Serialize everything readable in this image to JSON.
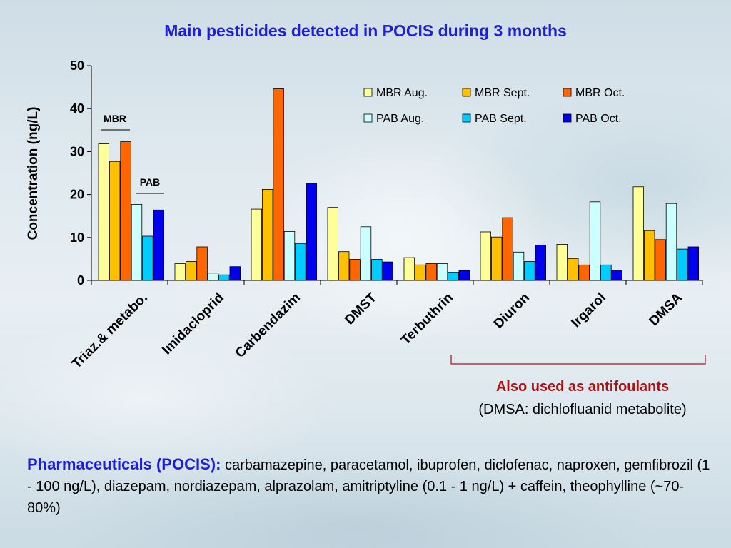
{
  "title": "Main pesticides detected in POCIS during 3 months",
  "chart_data": {
    "type": "bar",
    "title": "Main pesticides detected in POCIS during 3 months",
    "ylabel": "Concentration (ng/L)",
    "xlabel": "",
    "ylim": [
      0,
      50
    ],
    "yticks": [
      0,
      10,
      20,
      30,
      40,
      50
    ],
    "grid": false,
    "legend_position": "top-right",
    "categories": [
      "Triaz.& metabo.",
      "Imidacloprid",
      "Carbendazim",
      "DMST",
      "Terbuthrin",
      "Diuron",
      "Irgarol",
      "DMSA"
    ],
    "series": [
      {
        "name": "MBR Aug.",
        "color": "#ffff99",
        "values": [
          31.8,
          3.9,
          16.6,
          17.0,
          5.3,
          11.3,
          8.4,
          21.8
        ]
      },
      {
        "name": "MBR Sept.",
        "color": "#ffc000",
        "values": [
          27.7,
          4.4,
          21.2,
          6.7,
          3.6,
          10.1,
          5.1,
          11.6
        ]
      },
      {
        "name": "MBR Oct.",
        "color": "#ff6600",
        "values": [
          32.3,
          7.8,
          44.6,
          4.9,
          3.9,
          14.6,
          3.6,
          9.5
        ]
      },
      {
        "name": "PAB Aug.",
        "color": "#ccffff",
        "values": [
          17.7,
          1.7,
          11.4,
          12.5,
          3.9,
          6.6,
          18.3,
          17.9
        ]
      },
      {
        "name": "PAB Sept.",
        "color": "#00ccff",
        "values": [
          10.3,
          1.3,
          8.6,
          4.9,
          1.9,
          4.4,
          3.6,
          7.3
        ]
      },
      {
        "name": "PAB Oct.",
        "color": "#0000ee",
        "values": [
          16.4,
          3.2,
          22.6,
          4.3,
          2.3,
          8.2,
          2.4,
          7.8
        ]
      }
    ],
    "annotations": [
      "MBR",
      "PAB"
    ]
  },
  "notes": {
    "antifoulants": "Also used as antifoulants",
    "dmsa": "(DMSA: dichlofluanid metabolite)"
  },
  "pharma": {
    "heading": "Pharmaceuticals (POCIS):",
    "text": " carbamazepine, paracetamol, ibuprofen, diclofenac, naproxen, gemfibrozil (1 - 100 ng/L), diazepam, nordiazepam, alprazolam, amitriptyline (0.1 - 1 ng/L) + caffein, theophylline (~70-80%)"
  }
}
